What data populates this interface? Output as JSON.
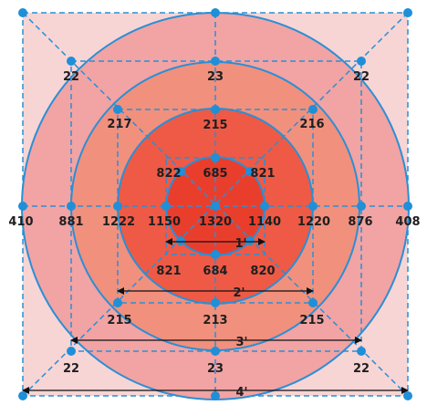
{
  "colors": {
    "outer_square": "#f7d5d5",
    "ring_4": "#f2a3a3",
    "ring_3": "#f1907d",
    "ring_2": "#ee5a45",
    "ring_1": "#ea3e2d",
    "line": "#2a8fd6",
    "dot": "#1f8fd8",
    "text": "#1f1f1f",
    "dimension_arrow": "#111111"
  },
  "values": {
    "center": "1320",
    "ring1": {
      "top": "685",
      "bottom": "684",
      "left": "1150",
      "right": "1140",
      "top_left": "822",
      "top_right": "821",
      "bottom_left": "821",
      "bottom_right": "820"
    },
    "ring2": {
      "top": "215",
      "bottom": "213",
      "left": "1222",
      "right": "1220",
      "top_left": "217",
      "top_right": "216",
      "bottom_left": "215",
      "bottom_right": "215"
    },
    "ring3": {
      "top": "23",
      "bottom": "23",
      "left": "881",
      "right": "876",
      "top_left": "22",
      "top_right": "22",
      "bottom_left": "22",
      "bottom_right": "22"
    },
    "ring4": {
      "left": "410",
      "right": "408"
    }
  },
  "dimensions": [
    "1'",
    "2'",
    "3'",
    "4'"
  ]
}
